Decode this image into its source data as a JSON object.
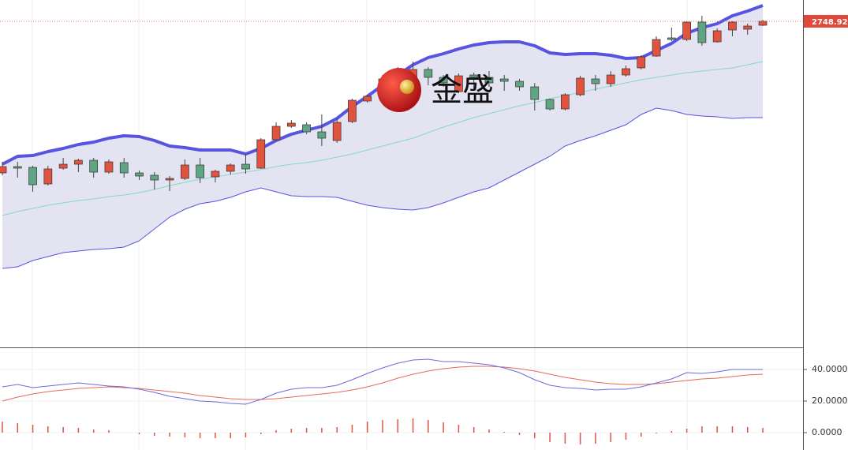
{
  "chart_data": [
    {
      "type": "candlestick",
      "watermark": "金盛",
      "categories": [
        null,
        null,
        null,
        null,
        null,
        null,
        null,
        null,
        null,
        null,
        null,
        null,
        null,
        null,
        null,
        null,
        null,
        null,
        null,
        null,
        null,
        null,
        null,
        null,
        null,
        null,
        null,
        null,
        null,
        null,
        null,
        null,
        null,
        null,
        null,
        null,
        null,
        null,
        null,
        null,
        null,
        null,
        null,
        null,
        null,
        null,
        null,
        null,
        null,
        null,
        null
      ],
      "ylim": [
        2542.4,
        2762.4
      ],
      "last_price": {
        "value": 2748.92,
        "label": "2748.920"
      },
      "up_color": "#e0533f",
      "down_color": "#5fa584",
      "open": [
        2652.9,
        2656.9,
        2656.4,
        2645.9,
        2655.9,
        2658.4,
        2660.9,
        2653.4,
        2659.4,
        2652.9,
        2651.4,
        2648.4,
        2649.4,
        2657.9,
        2650.4,
        2653.9,
        2658.4,
        2655.9,
        2673.9,
        2682.4,
        2683.4,
        2678.9,
        2673.4,
        2685.4,
        2698.4,
        2703.4,
        2712.4,
        2713.4,
        2718.4,
        2713.4,
        2704.4,
        2714.9,
        2713.4,
        2712.4,
        2710.9,
        2707.4,
        2699.4,
        2693.4,
        2702.4,
        2712.4,
        2709.4,
        2714.9,
        2719.4,
        2726.9,
        2738.4,
        2737.4,
        2748.4,
        2735.9,
        2743.4,
        2743.9,
        2746.4
      ],
      "close": [
        2656.9,
        2655.9,
        2645.4,
        2655.4,
        2658.4,
        2660.9,
        2653.4,
        2659.9,
        2652.9,
        2650.9,
        2648.4,
        2649.4,
        2657.9,
        2649.9,
        2653.9,
        2657.9,
        2655.4,
        2673.9,
        2682.4,
        2684.4,
        2678.9,
        2674.9,
        2684.9,
        2698.9,
        2701.4,
        2712.4,
        2717.4,
        2718.4,
        2713.4,
        2709.9,
        2714.4,
        2713.4,
        2709.9,
        2710.9,
        2707.4,
        2699.4,
        2693.4,
        2702.4,
        2712.9,
        2709.4,
        2714.9,
        2718.9,
        2726.4,
        2737.4,
        2737.4,
        2748.4,
        2735.4,
        2742.9,
        2748.4,
        2745.9,
        2748.92
      ],
      "high": [
        2659.9,
        2659.9,
        2657.4,
        2657.4,
        2662.4,
        2661.9,
        2662.4,
        2661.4,
        2662.4,
        2654.4,
        2653.4,
        2650.9,
        2661.4,
        2662.4,
        2654.9,
        2658.9,
        2664.9,
        2674.9,
        2684.9,
        2686.4,
        2684.9,
        2689.9,
        2687.4,
        2699.9,
        2702.4,
        2714.9,
        2719.9,
        2723.4,
        2719.9,
        2714.9,
        2715.9,
        2716.4,
        2717.4,
        2714.9,
        2712.4,
        2709.9,
        2699.9,
        2703.4,
        2714.4,
        2714.9,
        2717.4,
        2720.9,
        2727.4,
        2739.4,
        2744.9,
        2748.9,
        2752.4,
        2744.4,
        2748.9,
        2747.4,
        2749.9
      ],
      "low": [
        2651.4,
        2649.9,
        2640.9,
        2644.9,
        2654.9,
        2653.4,
        2649.9,
        2652.4,
        2649.9,
        2648.4,
        2642.4,
        2641.4,
        2648.4,
        2646.4,
        2646.9,
        2651.9,
        2652.4,
        2655.4,
        2673.4,
        2681.4,
        2677.4,
        2669.9,
        2671.9,
        2684.4,
        2697.4,
        2702.4,
        2710.4,
        2712.4,
        2708.4,
        2707.4,
        2703.4,
        2704.9,
        2707.4,
        2704.9,
        2704.9,
        2692.4,
        2692.4,
        2692.4,
        2701.4,
        2704.9,
        2707.4,
        2713.9,
        2718.4,
        2726.4,
        2736.4,
        2736.4,
        2733.4,
        2735.4,
        2739.4,
        2740.4,
        2745.9
      ],
      "bands": {
        "fill": "#e3e3f1",
        "upper_color": "#5854e2",
        "middle_color": "#86d8cb",
        "lower_color": "#5854e2",
        "upper": [
          2658.4,
          2663.4,
          2663.9,
          2666.4,
          2668.4,
          2670.9,
          2672.4,
          2674.9,
          2676.4,
          2675.9,
          2673.4,
          2669.9,
          2668.9,
          2667.4,
          2667.4,
          2667.4,
          2664.9,
          2668.4,
          2673.4,
          2677.4,
          2679.9,
          2682.4,
          2687.4,
          2694.9,
          2701.4,
          2708.4,
          2714.9,
          2721.4,
          2725.9,
          2728.4,
          2731.4,
          2733.9,
          2735.4,
          2735.9,
          2735.9,
          2733.4,
          2728.9,
          2727.9,
          2728.4,
          2728.4,
          2727.4,
          2725.4,
          2725.9,
          2730.4,
          2734.9,
          2741.4,
          2744.9,
          2747.4,
          2752.4,
          2755.4,
          2758.9
        ],
        "middle": [
          2625.9,
          2628.4,
          2630.4,
          2632.4,
          2633.9,
          2635.4,
          2636.4,
          2637.9,
          2638.9,
          2640.4,
          2642.4,
          2644.9,
          2646.9,
          2648.9,
          2650.4,
          2651.9,
          2653.4,
          2654.9,
          2656.9,
          2658.4,
          2659.4,
          2660.9,
          2662.9,
          2664.9,
          2667.4,
          2669.9,
          2672.4,
          2674.9,
          2678.4,
          2681.9,
          2684.9,
          2687.9,
          2690.4,
          2692.9,
          2695.4,
          2697.4,
          2699.9,
          2701.9,
          2703.9,
          2705.9,
          2707.9,
          2709.9,
          2711.9,
          2713.4,
          2714.9,
          2716.4,
          2717.4,
          2718.4,
          2719.4,
          2721.4,
          2723.4
        ],
        "lower": [
          2592.4,
          2593.4,
          2597.4,
          2599.9,
          2602.4,
          2603.4,
          2604.4,
          2604.9,
          2605.9,
          2609.9,
          2617.4,
          2624.9,
          2629.9,
          2633.4,
          2634.9,
          2637.4,
          2640.9,
          2643.4,
          2640.9,
          2638.4,
          2637.9,
          2637.9,
          2637.4,
          2634.9,
          2632.4,
          2630.9,
          2629.9,
          2629.4,
          2630.9,
          2633.9,
          2637.4,
          2640.9,
          2643.4,
          2648.4,
          2653.4,
          2658.4,
          2663.4,
          2669.9,
          2673.4,
          2676.4,
          2679.9,
          2683.4,
          2689.9,
          2693.9,
          2692.4,
          2689.9,
          2688.9,
          2688.4,
          2687.4,
          2687.9,
          2687.9
        ]
      }
    },
    {
      "type": "macd",
      "ylim": [
        -10.5,
        53.5
      ],
      "yticks": [
        {
          "value": 0,
          "label": "0.0000"
        },
        {
          "value": 20,
          "label": "20.0000"
        },
        {
          "value": 40,
          "label": "40.0000"
        }
      ],
      "dif": {
        "color": "#6b6be0",
        "values": [
          29,
          30.5,
          28.5,
          29.5,
          30.5,
          31.5,
          30.5,
          29.5,
          29,
          27.5,
          25.5,
          23,
          21.5,
          20,
          19.5,
          18.5,
          18,
          21,
          25,
          27.5,
          28.5,
          28.5,
          30,
          33.5,
          37.5,
          41,
          44,
          46,
          46.5,
          45,
          45,
          44,
          43,
          41,
          38,
          33.5,
          30,
          28.5,
          28,
          27,
          27.5,
          27.5,
          29,
          31.5,
          34,
          38,
          37.5,
          38.5,
          40,
          40,
          40
        ]
      },
      "dea": {
        "color": "#e66a5c",
        "values": [
          20,
          22.5,
          24.5,
          26,
          27,
          28,
          28.5,
          29,
          28.5,
          28,
          27,
          26,
          25,
          23.5,
          22.5,
          21.5,
          21,
          21,
          21.5,
          22.5,
          23.5,
          24.5,
          25.5,
          27,
          29,
          31.5,
          34.5,
          37,
          39,
          40.5,
          41.5,
          42,
          42,
          41.5,
          40.5,
          39,
          37,
          35,
          33.5,
          32,
          31,
          30.5,
          30.5,
          31,
          32,
          33,
          34,
          34.5,
          35.5,
          36.5,
          37
        ]
      },
      "hist": {
        "color": "#e0533f",
        "values": [
          7,
          6,
          5,
          4,
          3.5,
          3,
          2,
          1.5,
          0,
          -1,
          -2,
          -2.5,
          -3,
          -3.5,
          -3.5,
          -3.5,
          -3,
          -1,
          1.5,
          2.5,
          3,
          3,
          3.5,
          5,
          7,
          8,
          8.5,
          9,
          8,
          6.5,
          5,
          3.5,
          2,
          0.5,
          -1.5,
          -3.5,
          -6,
          -7,
          -7.5,
          -7,
          -6,
          -4.5,
          -2.5,
          -0.5,
          1,
          2.5,
          4,
          4,
          4,
          3.5,
          3
        ]
      }
    }
  ]
}
